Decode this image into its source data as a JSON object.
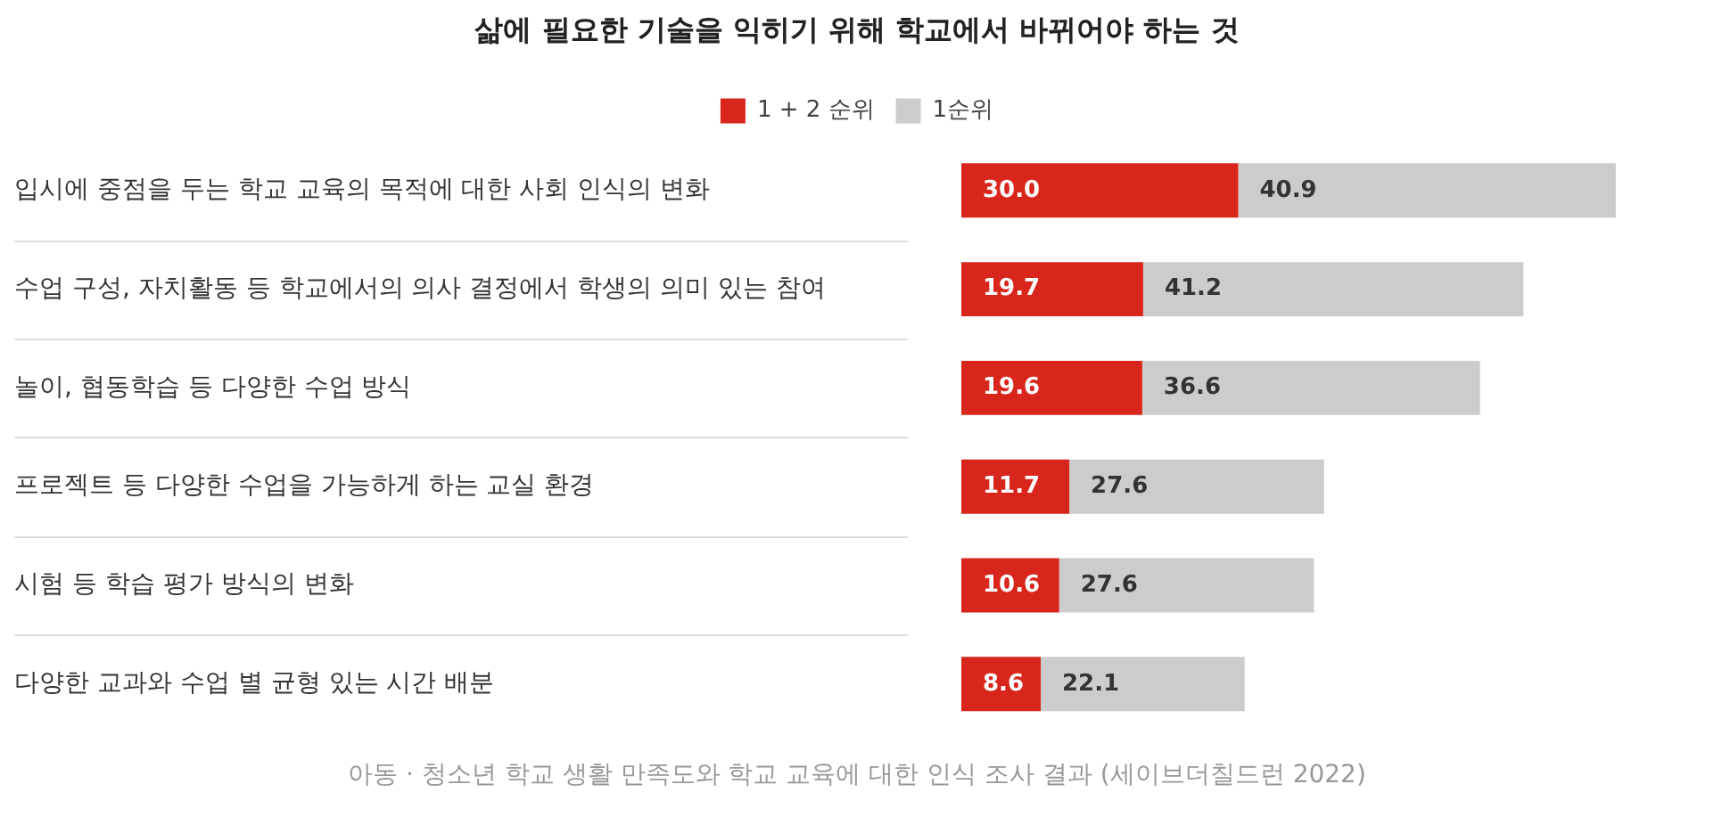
{
  "chart_data": {
    "type": "bar",
    "orientation": "horizontal",
    "stacked": true,
    "title": "삶에 필요한 기술을 익히기 위해 학교에서 바뀌어야 하는 것",
    "categories": [
      "입시에 중점을 두는 학교 교육의 목적에 대한 사회 인식의 변화",
      "수업 구성, 자치활동 등 학교에서의 의사 결정에서 학생의 의미 있는 참여",
      "놀이, 협동학습 등 다양한 수업 방식",
      "프로젝트 등 다양한 수업을 가능하게 하는 교실 환경",
      "시험 등 학습 평가 방식의 변화",
      "다양한 교과와 수업 별 균형 있는 시간 배분"
    ],
    "series": [
      {
        "name": "1 + 2 순위",
        "color": "#d9261c",
        "values": [
          30.0,
          19.7,
          19.6,
          11.7,
          10.6,
          8.6
        ],
        "value_labels": [
          "30.0",
          "19.7",
          "19.6",
          "11.7",
          "10.6",
          "8.6"
        ]
      },
      {
        "name": "1순위",
        "color": "#cccccc",
        "values": [
          40.9,
          41.2,
          36.6,
          27.6,
          27.6,
          22.1
        ],
        "value_labels": [
          "40.9",
          "41.2",
          "36.6",
          "27.6",
          "27.6",
          "22.1"
        ]
      }
    ],
    "grid": "y",
    "legend": "top",
    "annotations": [
      "아동 · 청소년 학교 생활 만족도와 학교 교육에 대한 인식 조사 결과 (세이브더칠드런 2022)"
    ]
  }
}
